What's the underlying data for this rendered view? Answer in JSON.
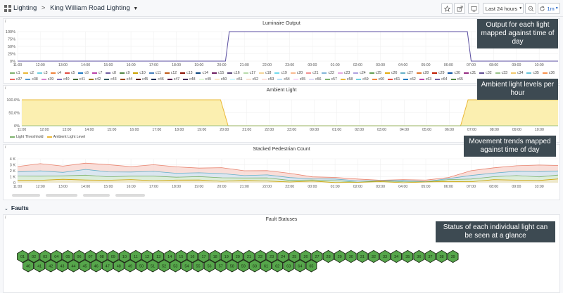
{
  "header": {
    "breadcrumb": {
      "folder": "Lighting",
      "separator": ">",
      "dashboard": "King William Road Lighting"
    },
    "time_range": "Last 24 hours",
    "refresh_interval": "1m",
    "icons": [
      "grid-icon",
      "star-icon",
      "share-icon",
      "tv-icon",
      "clock-icon",
      "zoom-out-icon",
      "refresh-icon"
    ]
  },
  "annotations": {
    "luminaire": "Output for each light mapped against time of day",
    "ambient": "Ambient light levels per hour",
    "pedestrian": "Movement trends mapped against time of day",
    "faults": "Status of each individual light can be seen at a glance"
  },
  "panels": {
    "luminaire": {
      "title": "Luminaire Output",
      "info": "i"
    },
    "ambient": {
      "title": "Ambient Light",
      "info": "i"
    },
    "pedestrian": {
      "title": "Stacked Pedestrian Count",
      "info": "i"
    },
    "faults": {
      "title": "Fault Statuses",
      "info": "i"
    }
  },
  "faults_row": {
    "label": "Faults"
  },
  "time_ticks": [
    "11:00",
    "12:00",
    "13:00",
    "14:00",
    "15:00",
    "16:00",
    "17:00",
    "18:00",
    "19:00",
    "20:00",
    "21:00",
    "22:00",
    "23:00",
    "00:00",
    "01:00",
    "02:00",
    "03:00",
    "04:00",
    "05:00",
    "06:00",
    "07:00",
    "08:00",
    "09:00",
    "10:00"
  ],
  "luminaire_legend": [
    "c1",
    "c2",
    "c3",
    "c4",
    "c5",
    "c6",
    "c7",
    "c8",
    "c9",
    "c10",
    "c11",
    "c12",
    "c13",
    "c14",
    "c15",
    "c16",
    "c17",
    "c18",
    "c19",
    "c20",
    "c21",
    "c22",
    "c23",
    "c24",
    "c25",
    "c26",
    "c27",
    "c28",
    "c29",
    "c30",
    "c31",
    "c32",
    "c33",
    "c34",
    "c35",
    "c36",
    "c37",
    "c38",
    "c39",
    "c40",
    "c41",
    "c42",
    "c43",
    "c44",
    "c45",
    "c46",
    "c47",
    "c48",
    "c49",
    "c50",
    "c51",
    "c52",
    "c53",
    "c54",
    "c55",
    "c56",
    "c57",
    "c58",
    "c59",
    "c60",
    "c61",
    "c62",
    "c63",
    "c64",
    "c65"
  ],
  "ambient_legend": [
    {
      "label": "Light Threshhold",
      "color": "#7eb26d"
    },
    {
      "label": "Ambient Light Level",
      "color": "#eab839"
    }
  ],
  "hex_labels": [
    "01",
    "02",
    "03",
    "04",
    "05",
    "06",
    "07",
    "08",
    "09",
    "10",
    "11",
    "12",
    "13",
    "14",
    "15",
    "16",
    "17",
    "18",
    "19",
    "20",
    "21",
    "22",
    "23",
    "24",
    "25",
    "26",
    "27",
    "28",
    "29",
    "30",
    "31",
    "32",
    "33",
    "34",
    "35",
    "36",
    "37",
    "38",
    "39",
    "40",
    "41",
    "42",
    "43",
    "44",
    "45",
    "46",
    "47",
    "48",
    "49",
    "50",
    "51",
    "52",
    "53",
    "54",
    "55",
    "56",
    "57",
    "58",
    "59",
    "60",
    "61",
    "62",
    "63",
    "64",
    "65"
  ],
  "colors": {
    "luminaire_line": "#5a4ea0",
    "ambient_fill": "#fbefb0",
    "ambient_line": "#eab839",
    "threshold": "#7eb26d",
    "ped_fill_top": "#f8d6cf",
    "ped_line_top": "#e8826d",
    "ped_fill_mid": "#d3e7f5",
    "ped_line_mid": "#64b0c8",
    "hex_fill": "#56a64b",
    "hex_stroke": "#1c2a14",
    "annotation_bg": "#3d4a52",
    "accent": "#1f60c4"
  },
  "chart_data": [
    {
      "type": "line",
      "title": "Luminaire Output",
      "ylabel": "",
      "y_ticks": [
        "100%",
        "75%",
        "50%",
        "25%",
        "0%"
      ],
      "ylim": [
        0,
        100
      ],
      "x": [
        "11:00",
        "12:00",
        "13:00",
        "14:00",
        "15:00",
        "16:00",
        "17:00",
        "18:00",
        "19:00",
        "20:00",
        "20:10",
        "20:20",
        "21:00",
        "22:00",
        "23:00",
        "00:00",
        "01:00",
        "02:00",
        "03:00",
        "04:00",
        "05:00",
        "06:00",
        "06:50",
        "07:00",
        "08:00",
        "09:00",
        "10:00",
        "10:50"
      ],
      "series": [
        {
          "name": "c1..c65 (overlapping)",
          "values": [
            0,
            0,
            0,
            0,
            0,
            0,
            0,
            0,
            0,
            0,
            0,
            100,
            100,
            100,
            100,
            100,
            100,
            100,
            100,
            100,
            100,
            100,
            100,
            0,
            0,
            0,
            0,
            0
          ]
        }
      ]
    },
    {
      "type": "area",
      "title": "Ambient Light",
      "y_ticks": [
        "100.0%",
        "50.0%",
        "0%"
      ],
      "ylim": [
        0,
        100
      ],
      "x": [
        "11:00",
        "12:00",
        "13:00",
        "14:00",
        "15:00",
        "16:00",
        "17:00",
        "18:00",
        "19:00",
        "19:50",
        "20:10",
        "21:00",
        "22:00",
        "23:00",
        "00:00",
        "01:00",
        "02:00",
        "03:00",
        "04:00",
        "05:00",
        "06:00",
        "06:30",
        "06:50",
        "07:00",
        "08:00",
        "09:00",
        "10:00",
        "10:50"
      ],
      "series": [
        {
          "name": "Ambient Light Level",
          "values": [
            100,
            100,
            100,
            100,
            100,
            100,
            100,
            100,
            100,
            100,
            0,
            0,
            0,
            0,
            0,
            0,
            0,
            0,
            0,
            0,
            0,
            0,
            100,
            100,
            100,
            100,
            100,
            100
          ]
        },
        {
          "name": "Light Threshhold",
          "values": [
            0,
            0,
            0,
            0,
            0,
            0,
            0,
            0,
            0,
            0,
            0,
            0,
            0,
            0,
            0,
            0,
            0,
            0,
            0,
            0,
            0,
            0,
            0,
            0,
            0,
            0,
            0,
            0
          ]
        }
      ]
    },
    {
      "type": "area",
      "title": "Stacked Pedestrian Count",
      "y_ticks": [
        "4 K",
        "3 K",
        "2 K",
        "1 K",
        "0"
      ],
      "ylim": [
        0,
        4000
      ],
      "x": [
        "11:00",
        "12:00",
        "13:00",
        "14:00",
        "15:00",
        "16:00",
        "17:00",
        "18:00",
        "19:00",
        "20:00",
        "21:00",
        "22:00",
        "23:00",
        "00:00",
        "01:00",
        "02:00",
        "03:00",
        "04:00",
        "05:00",
        "06:00",
        "07:00",
        "08:00",
        "09:00",
        "10:00",
        "10:50"
      ],
      "series": [
        {
          "name": "Series 1",
          "values": [
            2700,
            3100,
            2900,
            3200,
            3000,
            2800,
            2900,
            2700,
            2500,
            2400,
            2100,
            2000,
            1500,
            1100,
            800,
            600,
            500,
            400,
            500,
            900,
            1900,
            2600,
            2800,
            2900,
            3000
          ]
        },
        {
          "name": "Series 2",
          "values": [
            1700,
            2000,
            1800,
            2100,
            1900,
            1800,
            1800,
            1700,
            1600,
            1500,
            1300,
            1200,
            900,
            700,
            500,
            400,
            300,
            300,
            300,
            600,
            1200,
            1700,
            1800,
            1900,
            2000
          ]
        },
        {
          "name": "Series 3",
          "values": [
            1000,
            1200,
            1100,
            1200,
            1100,
            1000,
            1100,
            1000,
            900,
            900,
            800,
            700,
            500,
            400,
            300,
            200,
            200,
            200,
            200,
            400,
            700,
            1000,
            1100,
            1100,
            1200
          ]
        },
        {
          "name": "Series 4",
          "values": [
            400,
            500,
            450,
            500,
            450,
            400,
            450,
            400,
            380,
            350,
            300,
            280,
            200,
            150,
            100,
            80,
            80,
            80,
            80,
            150,
            280,
            400,
            450,
            450,
            500
          ]
        }
      ]
    }
  ]
}
